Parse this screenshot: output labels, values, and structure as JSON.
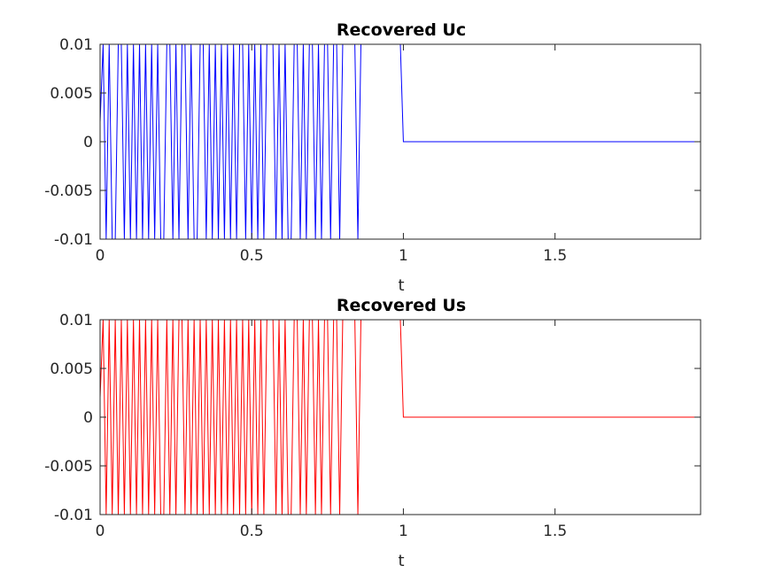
{
  "chart_data": [
    {
      "type": "line",
      "title": "Recovered Uc",
      "xlabel": "t",
      "ylabel": "",
      "xlim": [
        0,
        1.98
      ],
      "ylim": [
        -0.01,
        0.01
      ],
      "x_ticks": [
        "0",
        "0.5",
        "1",
        "1.5"
      ],
      "x_tick_values": [
        0,
        0.5,
        1,
        1.5
      ],
      "y_ticks": [
        "0.01",
        "0.005",
        "0",
        "-0.005",
        "-0.01"
      ],
      "y_tick_values": [
        0.01,
        0.005,
        0,
        -0.005,
        -0.01
      ],
      "grid": false,
      "color": "#0000ff",
      "series": [
        {
          "x": [
            0,
            0.01,
            0.02,
            0.03,
            0.04,
            0.05,
            0.06,
            0.07,
            0.08,
            0.09,
            0.1,
            0.11,
            0.12,
            0.13,
            0.14,
            0.15,
            0.16,
            0.17,
            0.18,
            0.19,
            0.2,
            0.21,
            0.22,
            0.23,
            0.24,
            0.25,
            0.26,
            0.27,
            0.28,
            0.29,
            0.3,
            0.31,
            0.32,
            0.33,
            0.34,
            0.35,
            0.36,
            0.37,
            0.38,
            0.39,
            0.4,
            0.41,
            0.42,
            0.43,
            0.44,
            0.45,
            0.46,
            0.47,
            0.48,
            0.49,
            0.5,
            0.51,
            0.52,
            0.53,
            0.54,
            0.55,
            0.56,
            0.57,
            0.58,
            0.59,
            0.6,
            0.61,
            0.62,
            0.63,
            0.64,
            0.65,
            0.66,
            0.67,
            0.68,
            0.69,
            0.7,
            0.71,
            0.72,
            0.73,
            0.74,
            0.75,
            0.76,
            0.77,
            0.78,
            0.79,
            0.8,
            0.81,
            0.82,
            0.83,
            0.84,
            0.85,
            0.86,
            0.87,
            0.88,
            0.89,
            0.9,
            0.91,
            0.92,
            0.93,
            0.94,
            0.95,
            0.96,
            0.97,
            0.98,
            0.99,
            1.0,
            1.98
          ],
          "y": [
            0.002,
            0.01,
            -0.01,
            0.01,
            -0.01,
            -0.01,
            0.01,
            0.01,
            -0.01,
            0.01,
            -0.01,
            0.01,
            -0.01,
            0.01,
            -0.01,
            0.01,
            -0.01,
            0.01,
            -0.01,
            0.01,
            -0.01,
            -0.01,
            0.01,
            0.01,
            -0.01,
            0.01,
            -0.01,
            0.01,
            0.01,
            -0.01,
            0.01,
            -0.01,
            -0.01,
            0.01,
            0.01,
            -0.01,
            0.01,
            -0.01,
            0.01,
            -0.01,
            0.01,
            -0.01,
            0.01,
            -0.01,
            0.01,
            -0.01,
            0.01,
            0.01,
            -0.01,
            0.01,
            -0.01,
            0.01,
            -0.01,
            0.01,
            -0.01,
            0.01,
            0.01,
            0.01,
            -0.01,
            0.01,
            -0.01,
            0.01,
            -0.01,
            -0.01,
            0.01,
            0.01,
            -0.01,
            0.01,
            -0.01,
            0.01,
            0.01,
            -0.01,
            0.01,
            -0.01,
            0.01,
            0.01,
            -0.01,
            0.01,
            0.01,
            -0.01,
            0.01,
            0.01,
            0.01,
            0.01,
            0.01,
            -0.01,
            0.01,
            0.01,
            0.01,
            0.01,
            0.01,
            0.01,
            0.01,
            0.01,
            0.01,
            0.01,
            0.01,
            0.01,
            0.01,
            0.01,
            0,
            0
          ]
        }
      ]
    },
    {
      "type": "line",
      "title": "Recovered Us",
      "xlabel": "t",
      "ylabel": "",
      "xlim": [
        0,
        1.98
      ],
      "ylim": [
        -0.01,
        0.01
      ],
      "x_ticks": [
        "0",
        "0.5",
        "1",
        "1.5"
      ],
      "x_tick_values": [
        0,
        0.5,
        1,
        1.5
      ],
      "y_ticks": [
        "0.01",
        "0.005",
        "0",
        "-0.005",
        "-0.01"
      ],
      "y_tick_values": [
        0.01,
        0.005,
        0,
        -0.005,
        -0.01
      ],
      "grid": false,
      "color": "#ff0000",
      "series": [
        {
          "x": [
            0,
            0.01,
            0.02,
            0.03,
            0.04,
            0.05,
            0.06,
            0.07,
            0.08,
            0.09,
            0.1,
            0.11,
            0.12,
            0.13,
            0.14,
            0.15,
            0.16,
            0.17,
            0.18,
            0.19,
            0.2,
            0.21,
            0.22,
            0.23,
            0.24,
            0.25,
            0.26,
            0.27,
            0.28,
            0.29,
            0.3,
            0.31,
            0.32,
            0.33,
            0.34,
            0.35,
            0.36,
            0.37,
            0.38,
            0.39,
            0.4,
            0.41,
            0.42,
            0.43,
            0.44,
            0.45,
            0.46,
            0.47,
            0.48,
            0.49,
            0.5,
            0.51,
            0.52,
            0.53,
            0.54,
            0.55,
            0.56,
            0.57,
            0.58,
            0.59,
            0.6,
            0.61,
            0.62,
            0.63,
            0.64,
            0.65,
            0.66,
            0.67,
            0.68,
            0.69,
            0.7,
            0.71,
            0.72,
            0.73,
            0.74,
            0.75,
            0.76,
            0.77,
            0.78,
            0.79,
            0.8,
            0.81,
            0.82,
            0.83,
            0.84,
            0.85,
            0.86,
            0.87,
            0.88,
            0.89,
            0.9,
            0.91,
            0.92,
            0.93,
            0.94,
            0.95,
            0.96,
            0.97,
            0.98,
            0.99,
            1.0,
            1.98
          ],
          "y": [
            0.002,
            0.01,
            -0.01,
            0.01,
            -0.01,
            0.01,
            -0.01,
            0.01,
            -0.01,
            0.01,
            -0.01,
            0.01,
            -0.01,
            0.01,
            -0.01,
            0.01,
            -0.01,
            0.01,
            -0.01,
            0.01,
            -0.01,
            -0.01,
            0.01,
            -0.01,
            0.01,
            -0.01,
            0.01,
            0.01,
            -0.01,
            0.01,
            -0.01,
            0.01,
            -0.01,
            0.01,
            -0.01,
            0.01,
            -0.01,
            0.01,
            -0.01,
            0.01,
            -0.01,
            0.01,
            -0.01,
            0.01,
            -0.01,
            0.01,
            -0.01,
            0.01,
            -0.01,
            0.01,
            -0.01,
            0.01,
            -0.01,
            0.01,
            -0.01,
            0.01,
            0.01,
            0.01,
            -0.01,
            0.01,
            -0.01,
            0.01,
            -0.01,
            -0.01,
            0.01,
            0.01,
            -0.01,
            0.01,
            -0.01,
            0.01,
            0.01,
            -0.01,
            0.01,
            -0.01,
            0.01,
            0.01,
            -0.01,
            0.01,
            0.01,
            -0.01,
            0.01,
            0.01,
            0.01,
            0.01,
            0.01,
            -0.01,
            0.01,
            0.01,
            0.01,
            0.01,
            0.01,
            0.01,
            0.01,
            0.01,
            0.01,
            0.01,
            0.01,
            0.01,
            0.01,
            0.01,
            0,
            0
          ]
        }
      ]
    }
  ]
}
